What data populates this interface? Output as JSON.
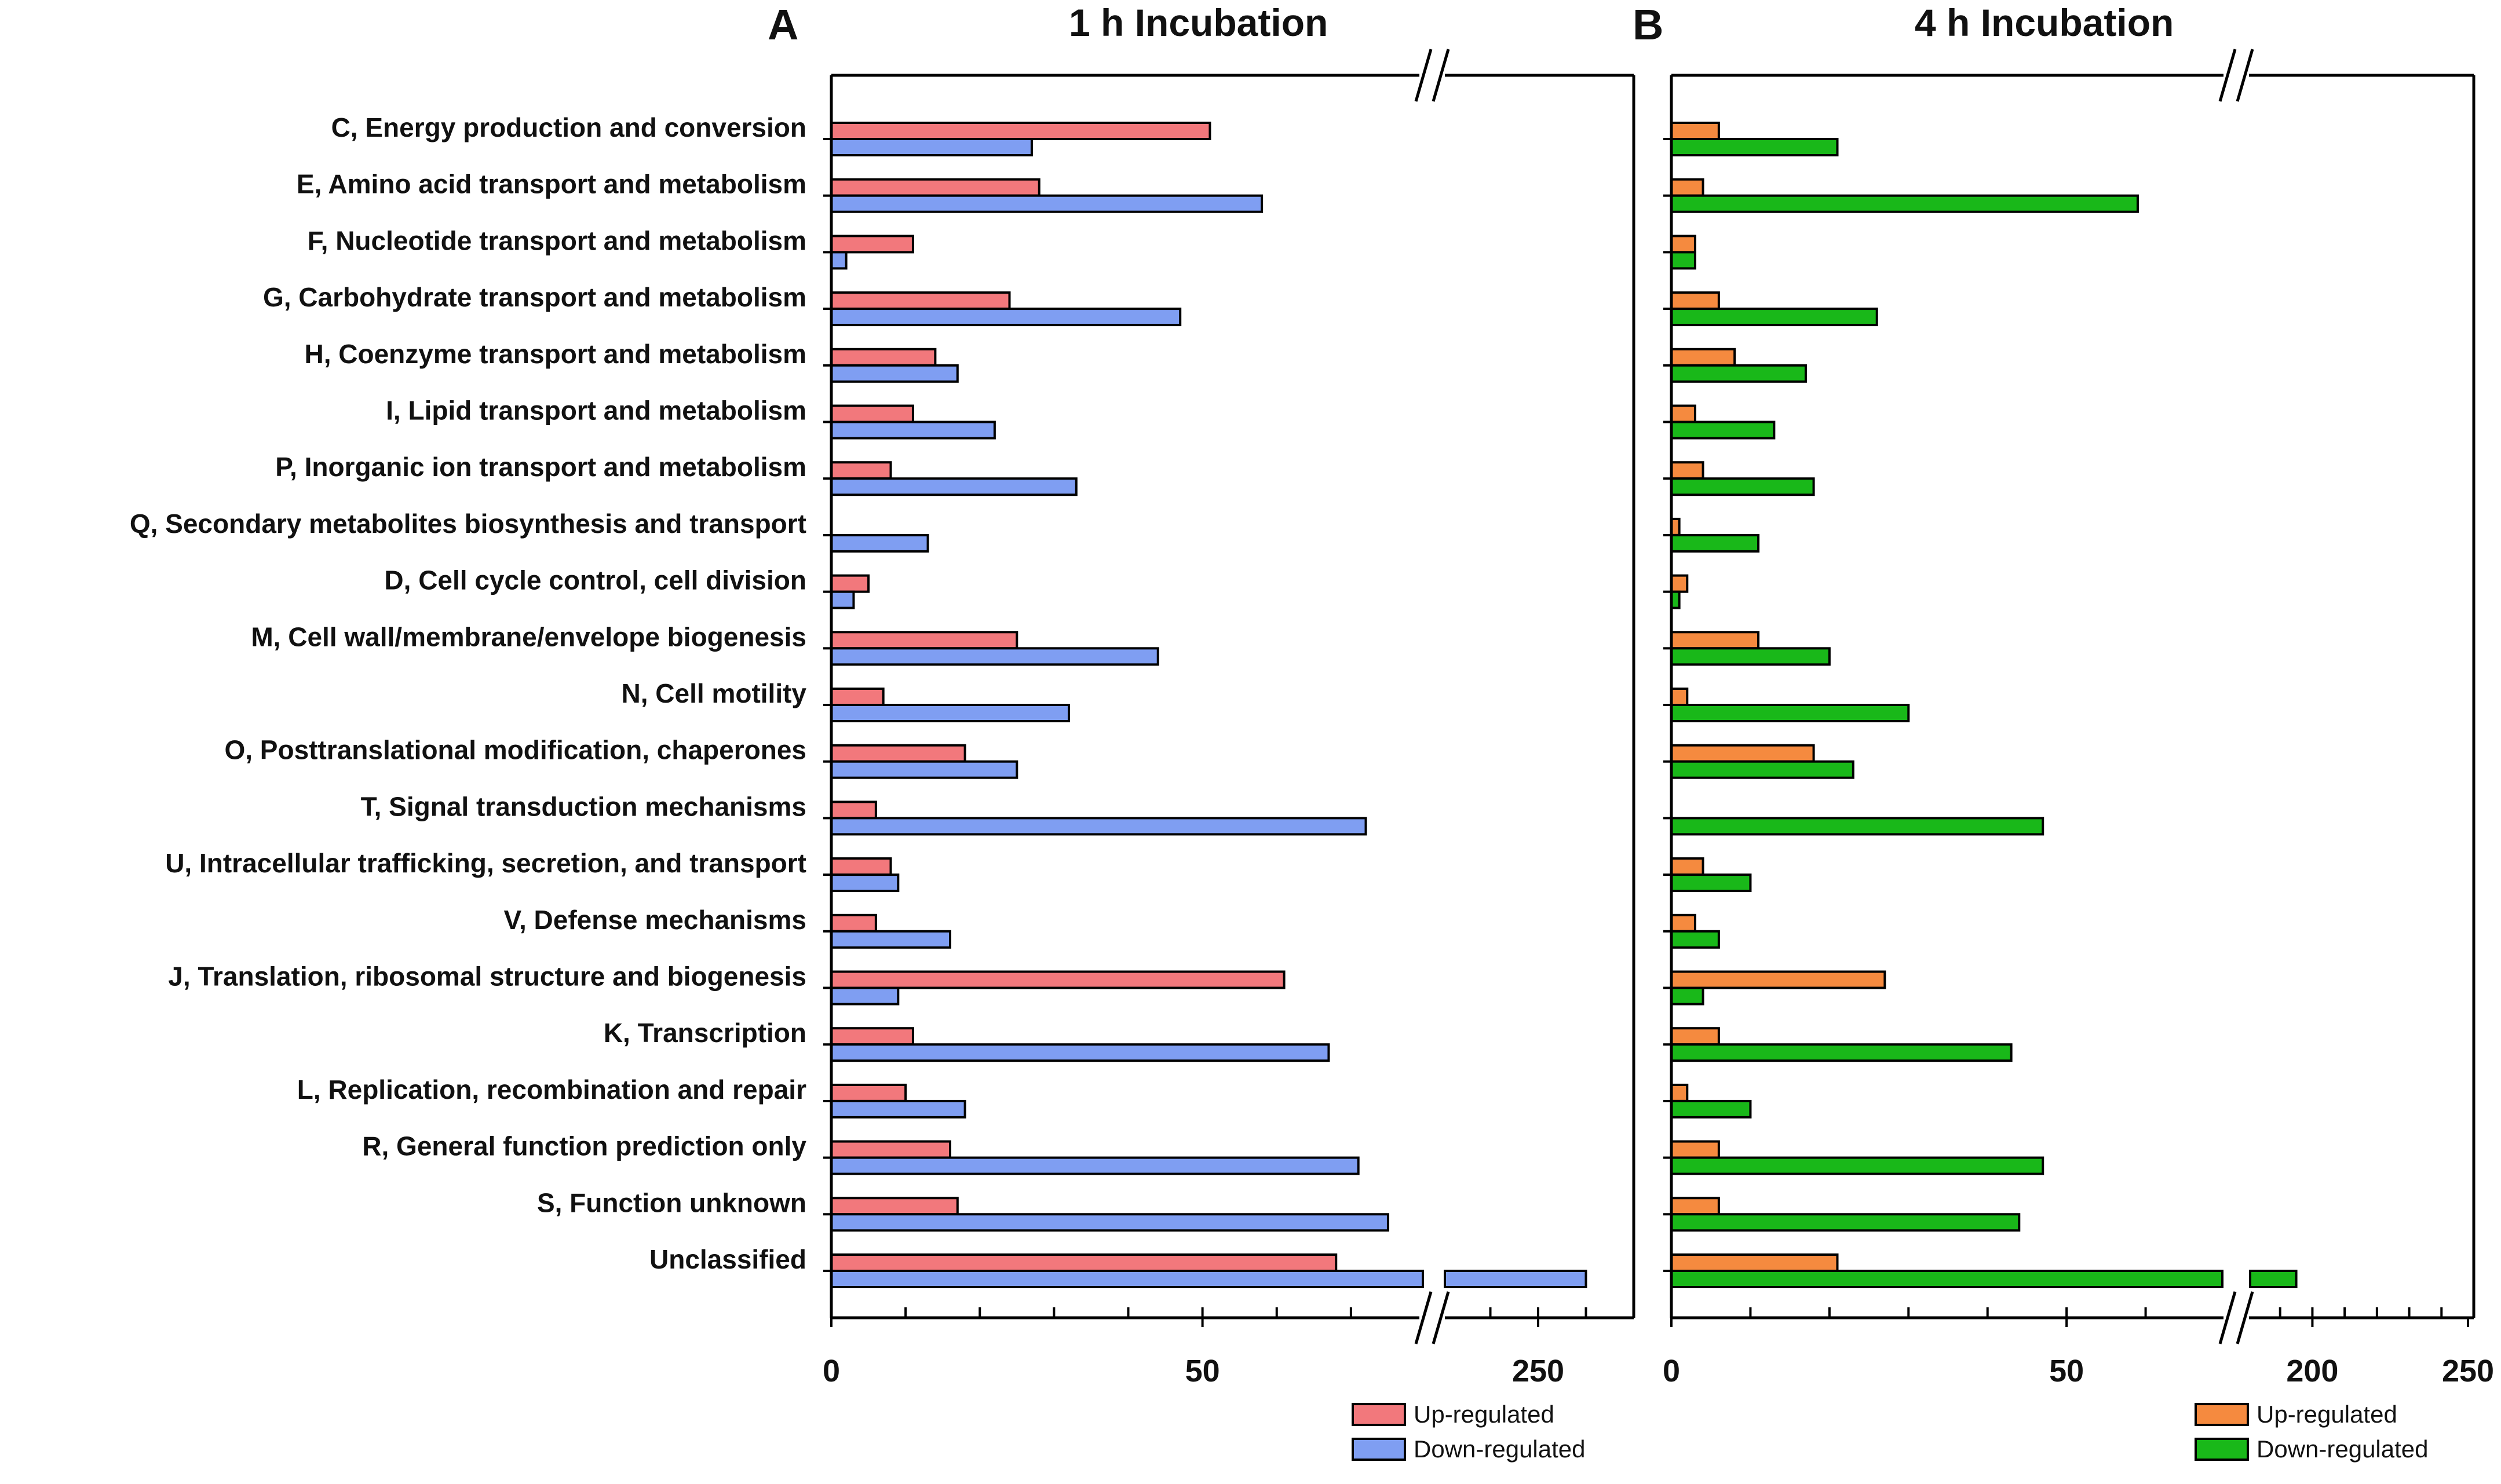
{
  "chart_data": [
    {
      "type": "bar",
      "orientation": "horizontal",
      "panel_letter": "A",
      "title": "1 h  Incubation",
      "categories": [
        "C, Energy production and conversion",
        "E, Amino acid transport and metabolism",
        "F, Nucleotide transport and metabolism",
        "G, Carbohydrate transport and metabolism",
        "H, Coenzyme transport and metabolism",
        "I, Lipid transport and metabolism",
        "P, Inorganic ion transport and metabolism",
        "Q, Secondary metabolites biosynthesis and transport",
        "D, Cell cycle control, cell division",
        "M, Cell wall/membrane/envelope biogenesis",
        "N, Cell motility",
        "O, Posttranslational modification, chaperones",
        "T, Signal transduction mechanisms",
        "U, Intracellular trafficking, secretion, and transport",
        "V, Defense mechanisms",
        "J, Translation, ribosomal structure and biogenesis",
        "K, Transcription",
        "L, Replication, recombination and repair",
        "R, General function prediction only",
        "S, Function unknown",
        "Unclassified"
      ],
      "series": [
        {
          "name": "Up-regulated",
          "color": "#f2787c",
          "values": [
            51,
            28,
            11,
            24,
            14,
            11,
            8,
            0,
            5,
            25,
            7,
            18,
            6,
            8,
            6,
            61,
            11,
            10,
            16,
            17,
            68
          ]
        },
        {
          "name": "Down-regulated",
          "color": "#7f9ef2",
          "values": [
            27,
            58,
            2,
            47,
            17,
            22,
            33,
            13,
            3,
            44,
            32,
            25,
            72,
            9,
            16,
            9,
            67,
            18,
            71,
            75,
            255
          ]
        }
      ],
      "x_axis": {
        "range_low": [
          0,
          80
        ],
        "range_high": [
          240,
          260
        ],
        "tick_labels": [
          "0",
          "50",
          "250"
        ],
        "axis_break": true
      },
      "legend": {
        "position": "bottom-right",
        "entries": [
          "Up-regulated",
          "Down-regulated"
        ]
      }
    },
    {
      "type": "bar",
      "orientation": "horizontal",
      "panel_letter": "B",
      "title": "4 h  Incubation",
      "categories": [
        "C, Energy production and conversion",
        "E, Amino acid transport and metabolism",
        "F, Nucleotide transport and metabolism",
        "G, Carbohydrate transport and metabolism",
        "H, Coenzyme transport and metabolism",
        "I, Lipid transport and metabolism",
        "P, Inorganic ion transport and metabolism",
        "Q, Secondary metabolites biosynthesis and transport",
        "D, Cell cycle control, cell division",
        "M, Cell wall/membrane/envelope biogenesis",
        "N, Cell motility",
        "O, Posttranslational modification, chaperones",
        "T, Signal transduction mechanisms",
        "U, Intracellular trafficking, secretion, and transport",
        "V, Defense mechanisms",
        "J, Translation, ribosomal structure and biogenesis",
        "K, Transcription",
        "L, Replication, recombination and repair",
        "R, General function prediction only",
        "S, Function unknown",
        "Unclassified"
      ],
      "series": [
        {
          "name": "Up-regulated",
          "color": "#f58a3f",
          "values": [
            6,
            4,
            3,
            6,
            8,
            3,
            4,
            1,
            2,
            11,
            2,
            18,
            0,
            4,
            3,
            27,
            6,
            2,
            6,
            6,
            21
          ]
        },
        {
          "name": "Down-regulated",
          "color": "#19b819",
          "values": [
            21,
            59,
            3,
            26,
            17,
            13,
            18,
            11,
            1,
            20,
            30,
            23,
            47,
            10,
            6,
            4,
            43,
            10,
            47,
            44,
            195
          ]
        }
      ],
      "x_axis": {
        "range_low": [
          0,
          70
        ],
        "range_high": [
          180,
          250
        ],
        "tick_labels": [
          "0",
          "50",
          "200",
          "250"
        ],
        "axis_break": true
      },
      "legend": {
        "position": "bottom-right",
        "entries": [
          "Up-regulated",
          "Down-regulated"
        ]
      }
    }
  ]
}
